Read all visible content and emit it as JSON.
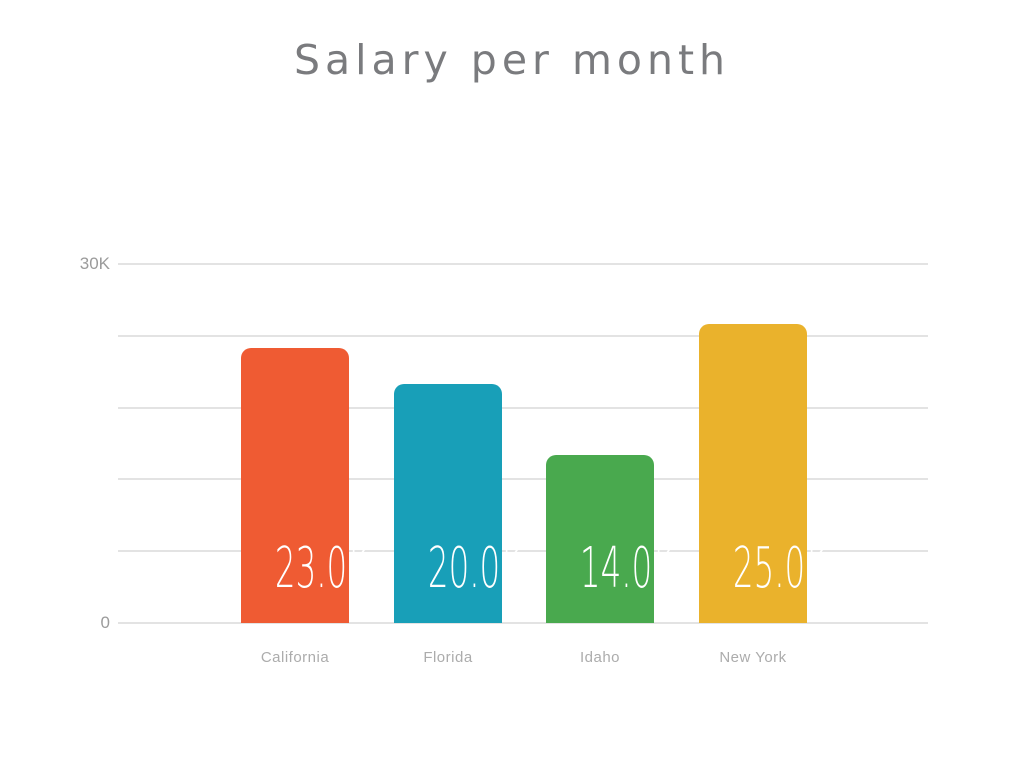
{
  "chart_data": {
    "type": "bar",
    "title": "Salary per month",
    "categories": [
      "California",
      "Florida",
      "Idaho",
      "New York"
    ],
    "values": [
      23000,
      20000,
      14000,
      25000
    ],
    "value_labels": [
      "23.0K",
      "20.0K",
      "14.0K",
      "25.0K"
    ],
    "bar_colors": [
      "#ef5b33",
      "#189fb8",
      "#49a94e",
      "#eab22c"
    ],
    "xlabel": "",
    "ylabel": "",
    "ylim": [
      0,
      30000
    ],
    "gridline_step": 6000,
    "grid": "horizontal",
    "legend": "none",
    "ytick_labels": [
      {
        "value": 30000,
        "label": "30K"
      },
      {
        "value": 0,
        "label": "0"
      }
    ],
    "colors": {
      "background": "#ffffff",
      "title_text": "#7a7b7e",
      "gridline": "#e3e3e3",
      "y_tick_text": "#9b9b9b",
      "category_text": "#acacac",
      "value_label_text": "#ffffff"
    }
  }
}
